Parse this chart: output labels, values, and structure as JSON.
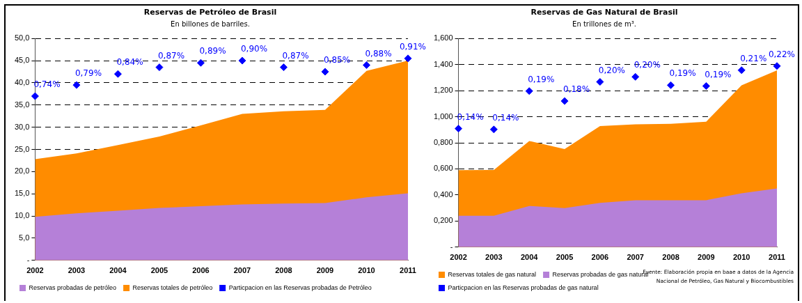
{
  "chart_data": [
    {
      "type": "area",
      "title": "Reservas de Petróleo de Brasil",
      "subtitle": "En billones de barriles.",
      "categories": [
        "2002",
        "2003",
        "2004",
        "2005",
        "2006",
        "2007",
        "2008",
        "2009",
        "2010",
        "2011"
      ],
      "series": [
        {
          "name": "Reservas probadas de petróleo",
          "color": "#b580d8",
          "values": [
            9.8,
            10.6,
            11.2,
            11.8,
            12.2,
            12.6,
            12.8,
            12.9,
            14.2,
            15.1
          ]
        },
        {
          "name": "Reservas totales de petróleo",
          "color": "#ff8c00",
          "values": [
            22.8,
            24.1,
            26.0,
            27.9,
            30.4,
            33.0,
            33.6,
            33.9,
            42.7,
            45.0
          ]
        },
        {
          "name": "Particpacion en las Reservas probadas de Petróleo",
          "type": "scatter",
          "axis": "y2",
          "marker": "diamond",
          "color": "#0000ff",
          "values": [
            0.74,
            0.79,
            0.84,
            0.87,
            0.89,
            0.9,
            0.87,
            0.85,
            0.88,
            0.91
          ],
          "value_labels": [
            "0,74%",
            "0,79%",
            "0,84%",
            "0,87%",
            "0,89%",
            "0,90%",
            "0,87%",
            "0,85%",
            "0,88%",
            "0,91%"
          ]
        }
      ],
      "ylim": [
        0,
        50
      ],
      "yticks": [
        {
          "value": 0,
          "label": "-"
        },
        {
          "value": 5,
          "label": "5,0"
        },
        {
          "value": 10,
          "label": "10,0"
        },
        {
          "value": 15,
          "label": "15,0"
        },
        {
          "value": 20,
          "label": "20,0"
        },
        {
          "value": 25,
          "label": "25,0"
        },
        {
          "value": 30,
          "label": "30,0"
        },
        {
          "value": 35,
          "label": "35,0"
        },
        {
          "value": 40,
          "label": "40,0"
        },
        {
          "value": 45,
          "label": "45,0"
        },
        {
          "value": 50,
          "label": "50,0"
        }
      ],
      "y2lim": [
        0,
        1
      ],
      "grid": "y",
      "legend": "bottom"
    },
    {
      "type": "area",
      "title": "Reservas de Gas Natural de Brasil",
      "subtitle": "En trillones de m³.",
      "categories": [
        "2002",
        "2003",
        "2004",
        "2005",
        "2006",
        "2007",
        "2008",
        "2009",
        "2010",
        "2011"
      ],
      "series": [
        {
          "name": "Reservas totales de gas natural",
          "color": "#ff8c00",
          "values": [
            0.59,
            0.592,
            0.814,
            0.752,
            0.928,
            0.942,
            0.946,
            0.962,
            1.24,
            1.355
          ]
        },
        {
          "name": "Reservas probadas de gas natural",
          "color": "#b580d8",
          "values": [
            0.24,
            0.24,
            0.316,
            0.3,
            0.34,
            0.36,
            0.36,
            0.36,
            0.413,
            0.45
          ]
        },
        {
          "name": "Particpacion en las Reservas probadas de gas natural",
          "type": "scatter",
          "axis": "y2",
          "marker": "diamond",
          "color": "#0000ff",
          "values": [
            0.142,
            0.141,
            0.187,
            0.175,
            0.198,
            0.204,
            0.194,
            0.193,
            0.212,
            0.217
          ],
          "value_labels": [
            "0,14%",
            "0,14%",
            "0,19%",
            "0,18%",
            "0,20%",
            "0,20%",
            "0,19%",
            "0,19%",
            "0,21%",
            "0,22%"
          ]
        }
      ],
      "ylim": [
        0,
        1.6
      ],
      "yticks": [
        {
          "value": 0,
          "label": "-"
        },
        {
          "value": 0.2,
          "label": "0,200"
        },
        {
          "value": 0.4,
          "label": "0,400"
        },
        {
          "value": 0.6,
          "label": "0,600"
        },
        {
          "value": 0.8,
          "label": "0,800"
        },
        {
          "value": 1.0,
          "label": "1,000"
        },
        {
          "value": 1.2,
          "label": "1,200"
        },
        {
          "value": 1.4,
          "label": "1,400"
        },
        {
          "value": 1.6,
          "label": "1,600"
        }
      ],
      "y2lim": [
        0,
        0.25
      ],
      "grid": "y",
      "legend": "bottom",
      "annotations": [
        "Fuente: Elaboración propia en baae a datos de la Agencia Nacional de Petróleo, Gas Natural y Biocombustibles"
      ]
    }
  ]
}
